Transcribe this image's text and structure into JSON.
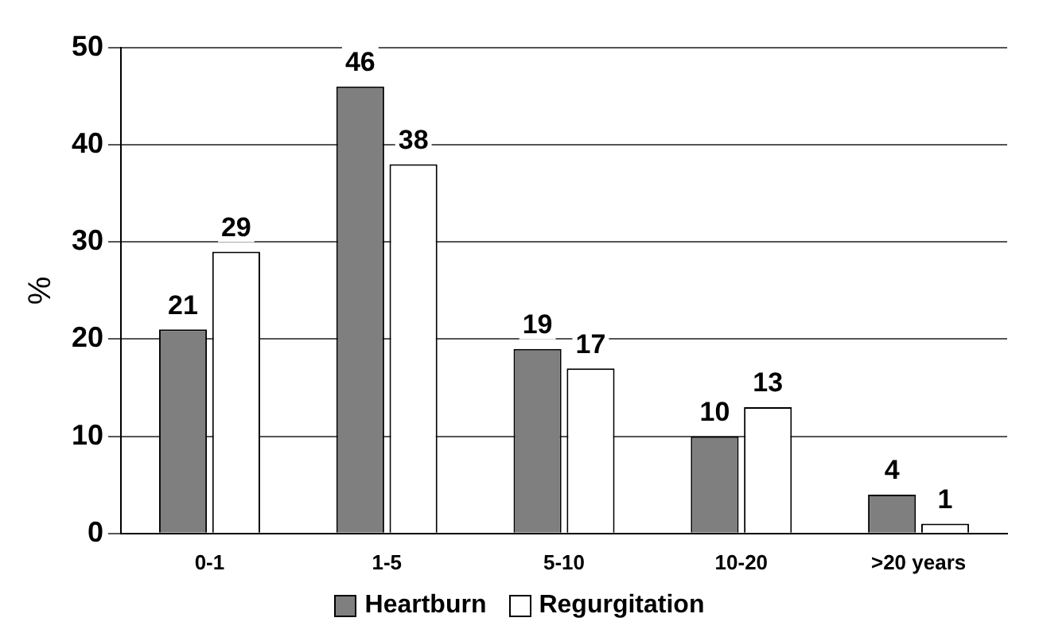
{
  "chart_data": {
    "type": "bar",
    "ylabel": "%",
    "categories": [
      "0-1",
      "1-5",
      "5-10",
      "10-20",
      ">20 years"
    ],
    "series": [
      {
        "name": "Heartburn",
        "color": "#7f7f7f",
        "values": [
          21,
          46,
          19,
          10,
          4
        ]
      },
      {
        "name": "Regurgitation",
        "color": "#ffffff",
        "values": [
          29,
          38,
          17,
          13,
          1
        ]
      }
    ],
    "ylim": [
      0,
      50
    ],
    "yticks": [
      0,
      10,
      20,
      30,
      40,
      50
    ],
    "grid": "y",
    "legend": "bottom",
    "data_labels": true
  }
}
